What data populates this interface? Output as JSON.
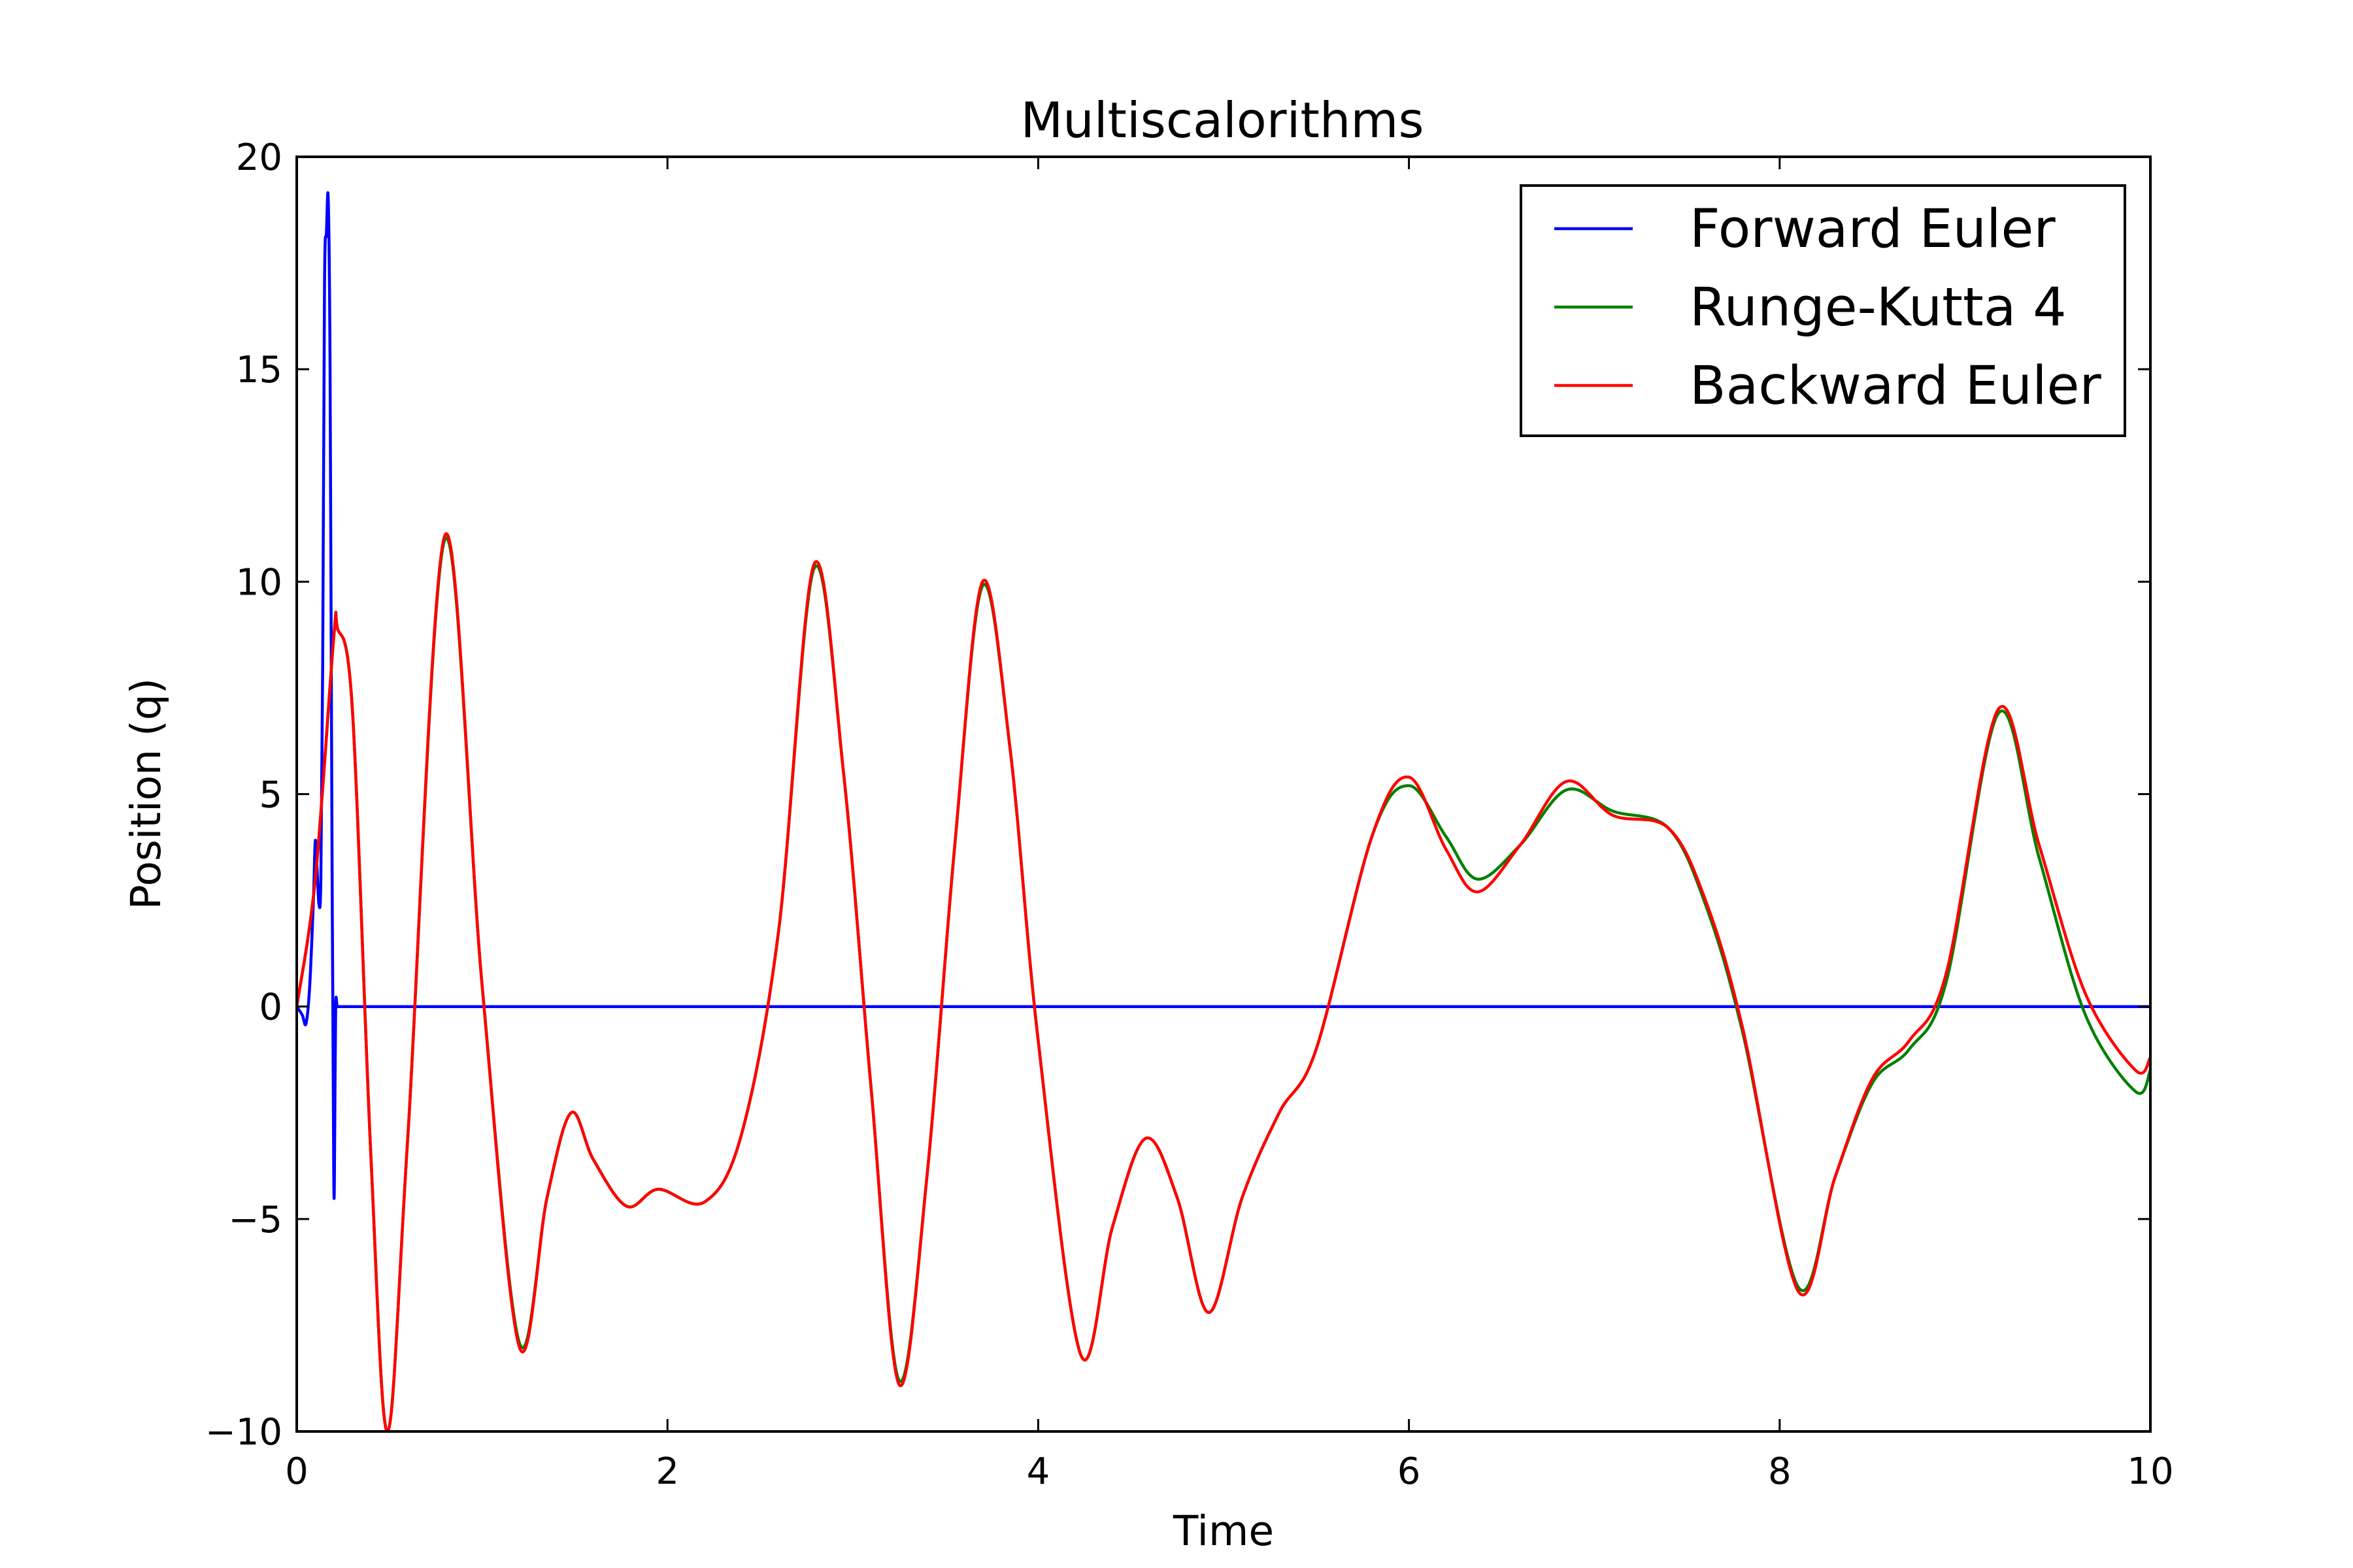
{
  "chart_data": {
    "type": "line",
    "title": "Multiscalorithms",
    "xlabel": "Time",
    "ylabel": "Position (q)",
    "xlim": [
      0,
      10
    ],
    "ylim": [
      -10,
      20
    ],
    "xticks": [
      {
        "value": 0,
        "label": "0"
      },
      {
        "value": 2,
        "label": "2"
      },
      {
        "value": 4,
        "label": "4"
      },
      {
        "value": 6,
        "label": "6"
      },
      {
        "value": 8,
        "label": "8"
      },
      {
        "value": 10,
        "label": "10"
      }
    ],
    "yticks": [
      {
        "value": -10,
        "label": "−10"
      },
      {
        "value": -5,
        "label": "−5"
      },
      {
        "value": 0,
        "label": "0"
      },
      {
        "value": 5,
        "label": "5"
      },
      {
        "value": 10,
        "label": "10"
      },
      {
        "value": 15,
        "label": "15"
      },
      {
        "value": 20,
        "label": "20"
      }
    ],
    "grid": false,
    "legend_position": "top-right",
    "series": [
      {
        "name": "Forward Euler",
        "color": "#0000ff",
        "x": [
          0,
          0.03,
          0.05,
          0.07,
          0.09,
          0.1,
          0.11,
          0.12,
          0.13,
          0.14,
          0.15,
          0.16,
          0.17,
          0.18,
          0.19,
          0.2,
          0.205,
          0.21,
          0.22,
          0.25,
          0.5,
          1,
          2,
          3,
          4,
          5,
          6,
          7,
          8,
          9,
          10
        ],
        "y": [
          0,
          -0.2,
          -0.4,
          0.5,
          2.5,
          3.9,
          3.2,
          2.4,
          3.0,
          8.0,
          17.0,
          18.2,
          19.0,
          15.0,
          4.0,
          -4.1,
          -3.0,
          0.0,
          0.0,
          0.0,
          0.0,
          0.0,
          0.0,
          0.0,
          0.0,
          0.0,
          0.0,
          0.0,
          0.0,
          0.0,
          0.0
        ]
      },
      {
        "name": "Runge-Kutta 4",
        "color": "#008000",
        "x": [
          0,
          0.1,
          0.2,
          0.22,
          0.3,
          0.4,
          0.49,
          0.6,
          0.8,
          1.0,
          1.2,
          1.35,
          1.48,
          1.6,
          1.78,
          1.95,
          2.2,
          2.4,
          2.6,
          2.79,
          2.95,
          3.1,
          3.25,
          3.4,
          3.55,
          3.7,
          3.85,
          4.0,
          4.23,
          4.4,
          4.58,
          4.75,
          4.92,
          5.1,
          5.3,
          5.5,
          5.8,
          6.0,
          6.2,
          6.37,
          6.6,
          6.85,
          7.1,
          7.4,
          7.6,
          7.8,
          8.1,
          8.3,
          8.5,
          8.7,
          8.9,
          9.18,
          9.4,
          9.65,
          9.92,
          10.0
        ],
        "y": [
          0,
          3.0,
          8.7,
          8.9,
          7.0,
          -3.5,
          -10.0,
          -3.0,
          11.0,
          0.5,
          -7.9,
          -4.5,
          -2.5,
          -3.6,
          -4.7,
          -4.3,
          -4.6,
          -3.0,
          1.8,
          10.3,
          5.5,
          -2.0,
          -8.8,
          -4.0,
          3.8,
          9.9,
          6.0,
          -0.8,
          -8.2,
          -5.2,
          -3.1,
          -4.5,
          -7.2,
          -4.5,
          -2.5,
          -1.0,
          4.0,
          5.2,
          4.0,
          3.0,
          3.8,
          5.1,
          4.6,
          4.2,
          2.4,
          -0.6,
          -6.6,
          -4.0,
          -1.8,
          -1.0,
          0.6,
          6.9,
          3.5,
          -0.2,
          -2.0,
          -1.5
        ]
      },
      {
        "name": "Backward Euler",
        "color": "#ff0000",
        "x": [
          0,
          0.1,
          0.2,
          0.22,
          0.3,
          0.4,
          0.49,
          0.6,
          0.8,
          1.0,
          1.2,
          1.35,
          1.48,
          1.6,
          1.78,
          1.95,
          2.2,
          2.4,
          2.6,
          2.79,
          2.95,
          3.1,
          3.25,
          3.4,
          3.55,
          3.7,
          3.85,
          4.0,
          4.23,
          4.4,
          4.58,
          4.75,
          4.92,
          5.1,
          5.3,
          5.5,
          5.8,
          6.0,
          6.2,
          6.37,
          6.6,
          6.85,
          7.1,
          7.4,
          7.6,
          7.8,
          8.1,
          8.3,
          8.5,
          8.7,
          8.9,
          9.18,
          9.4,
          9.65,
          9.92,
          10.0
        ],
        "y": [
          0,
          3.0,
          8.7,
          8.9,
          7.0,
          -3.5,
          -10.0,
          -3.0,
          11.1,
          0.5,
          -8.0,
          -4.5,
          -2.5,
          -3.6,
          -4.7,
          -4.3,
          -4.6,
          -3.0,
          1.8,
          10.4,
          5.5,
          -2.0,
          -8.9,
          -4.0,
          3.8,
          10.0,
          6.0,
          -0.8,
          -8.2,
          -5.2,
          -3.1,
          -4.5,
          -7.2,
          -4.5,
          -2.5,
          -1.0,
          4.0,
          5.4,
          3.7,
          2.7,
          3.8,
          5.3,
          4.5,
          4.2,
          2.5,
          -0.5,
          -6.7,
          -4.0,
          -1.7,
          -0.8,
          0.8,
          7.0,
          3.8,
          0.3,
          -1.5,
          -1.2
        ]
      }
    ]
  }
}
